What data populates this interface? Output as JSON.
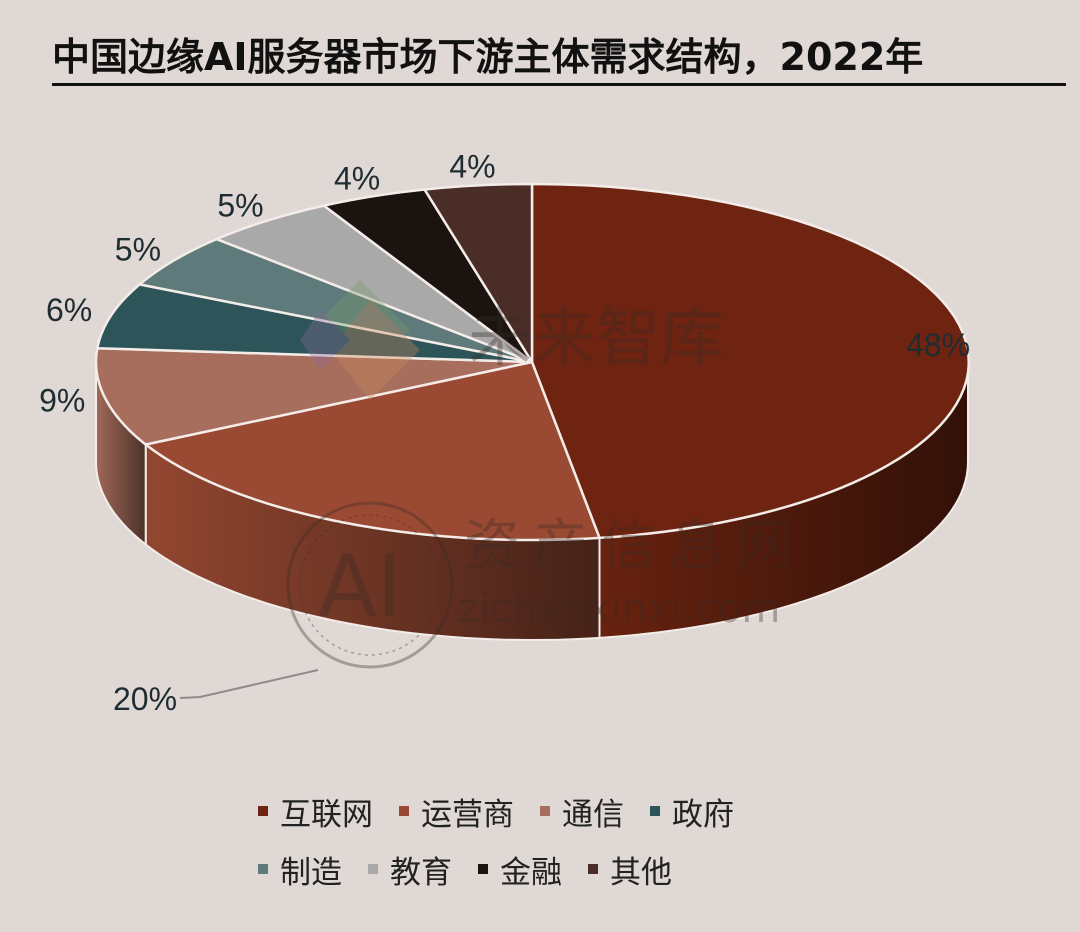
{
  "chart_data": {
    "type": "pie",
    "title": "中国边缘AI服务器市场下游主体需求结构，2022年",
    "slices": [
      {
        "name": "互联网",
        "value": 48,
        "label": "48%",
        "color": "#6e2410"
      },
      {
        "name": "运营商",
        "value": 20,
        "label": "20%",
        "color": "#9a4a33"
      },
      {
        "name": "通信",
        "value": 9,
        "label": "9%",
        "color": "#a86e5d"
      },
      {
        "name": "政府",
        "value": 6,
        "label": "6%",
        "color": "#2d5458"
      },
      {
        "name": "制造",
        "value": 5,
        "label": "5%",
        "color": "#5e7a7b"
      },
      {
        "name": "教育",
        "value": 5,
        "label": "5%",
        "color": "#a9a9aa"
      },
      {
        "name": "金融",
        "value": 4,
        "label": "4%",
        "color": "#1a130f"
      },
      {
        "name": "其他",
        "value": 4,
        "label": "4%",
        "color": "#4a2d26"
      }
    ],
    "legend_placement": "bottom"
  },
  "watermarks": {
    "brand1": "未来智库",
    "brand2": "资产信息网",
    "brand2_logo": "AI",
    "brand2_url": "zichanxinxi.com"
  }
}
